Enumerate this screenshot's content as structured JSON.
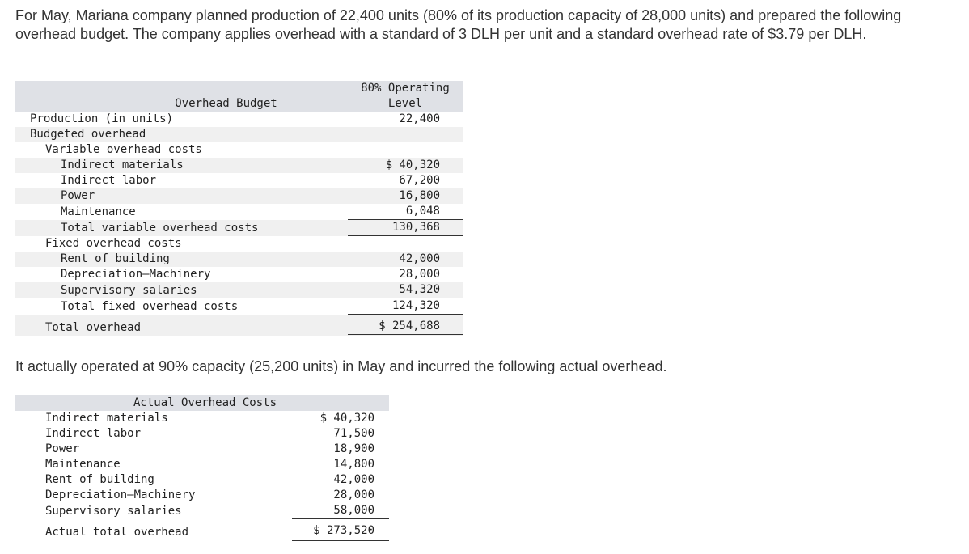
{
  "intro_text": "For May, Mariana company planned production of 22,400 units (80% of its production capacity of 28,000 units) and prepared the following overhead budget. The company applies overhead with a standard of 3 DLH per unit and a standard overhead rate of $3.79 per DLH.",
  "budget": {
    "title": "Overhead Budget",
    "column_header_line1": "80% Operating",
    "column_header_line2": "Level",
    "production_label": "Production (in units)",
    "production_value": "22,400",
    "budgeted_overhead_label": "Budgeted overhead",
    "variable_header": "Variable overhead costs",
    "variable_items": [
      {
        "label": "Indirect materials",
        "value": "$ 40,320"
      },
      {
        "label": "Indirect labor",
        "value": "67,200"
      },
      {
        "label": "Power",
        "value": "16,800"
      },
      {
        "label": "Maintenance",
        "value": "6,048"
      }
    ],
    "total_variable_label": "Total variable overhead costs",
    "total_variable_value": "130,368",
    "fixed_header": "Fixed overhead costs",
    "fixed_items": [
      {
        "label": "Rent of building",
        "value": "42,000"
      },
      {
        "label": "Depreciation—Machinery",
        "value": "28,000"
      },
      {
        "label": "Supervisory salaries",
        "value": "54,320"
      }
    ],
    "total_fixed_label": "Total fixed overhead costs",
    "total_fixed_value": "124,320",
    "total_overhead_label": "Total overhead",
    "total_overhead_value": "$ 254,688"
  },
  "mid_text": "It actually operated at 90% capacity (25,200 units) in May and incurred the following actual overhead.",
  "actual": {
    "title": "Actual Overhead Costs",
    "items": [
      {
        "label": "Indirect materials",
        "value": "$ 40,320"
      },
      {
        "label": "Indirect labor",
        "value": "71,500"
      },
      {
        "label": "Power",
        "value": "18,900"
      },
      {
        "label": "Maintenance",
        "value": "14,800"
      },
      {
        "label": "Rent of building",
        "value": "42,000"
      },
      {
        "label": "Depreciation—Machinery",
        "value": "28,000"
      },
      {
        "label": "Supervisory salaries",
        "value": "58,000"
      }
    ],
    "total_label": "Actual total overhead",
    "total_value": "$ 273,520"
  }
}
